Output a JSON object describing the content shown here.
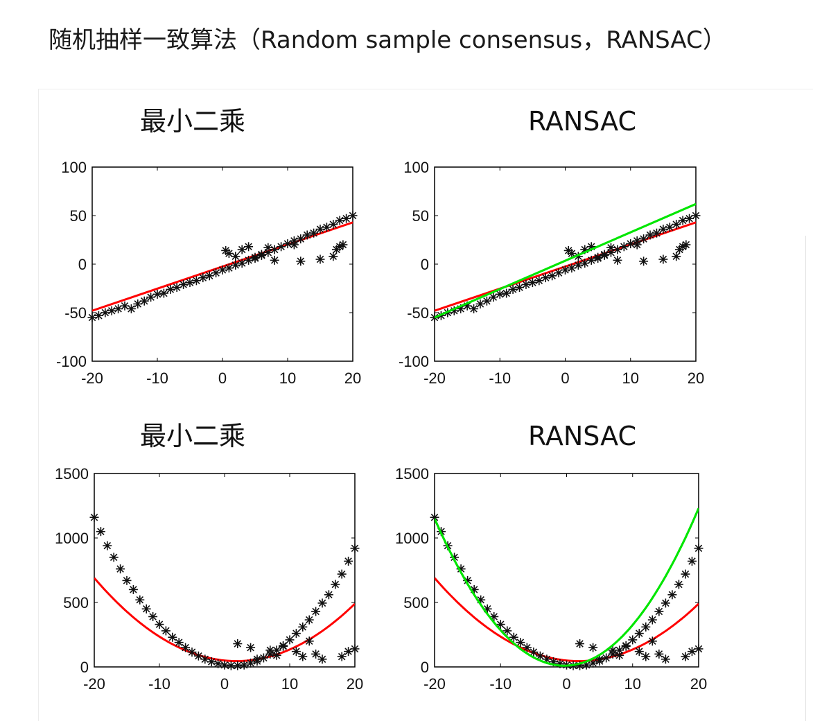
{
  "page": {
    "heading": "随机抽样一致算法（Random sample consensus，RANSAC）"
  },
  "colors": {
    "points": "#111111",
    "least_squares_fit": "#ff0000",
    "ransac_fit": "#00e600",
    "axes": "#000000"
  },
  "chart_data": [
    {
      "id": "linear-ls",
      "type": "scatter",
      "title": "最小二乘",
      "xlim": [
        -20,
        20
      ],
      "ylim": [
        -100,
        100
      ],
      "xticks": [
        "-20",
        "-10",
        "0",
        "10",
        "20"
      ],
      "yticks": [
        "100",
        "50",
        "0",
        "-50",
        "-100"
      ],
      "series": [
        {
          "name": "data",
          "marker": "asterisk",
          "x": [
            -20,
            -19,
            -18,
            -17,
            -16,
            -15,
            -14,
            -13,
            -12,
            -11,
            -10,
            -9,
            -8,
            -7,
            -6,
            -5,
            -4,
            -3,
            -2,
            -1,
            0,
            1,
            2,
            3,
            4,
            5,
            6,
            7,
            8,
            9,
            10,
            11,
            12,
            13,
            14,
            15,
            16,
            17,
            18,
            19,
            20,
            0.5,
            1,
            2,
            3,
            4,
            5,
            6,
            7,
            8,
            11,
            12,
            15,
            17,
            17.5,
            18,
            18.5
          ],
          "y": [
            -55,
            -53,
            -50,
            -48,
            -46,
            -43,
            -46,
            -41,
            -38,
            -34,
            -31,
            -30,
            -26,
            -24,
            -21,
            -19,
            -17,
            -14,
            -12,
            -9,
            -6,
            -4,
            -1,
            1,
            4,
            7,
            9,
            12,
            15,
            18,
            21,
            24,
            26,
            30,
            32,
            36,
            38,
            41,
            45,
            47,
            50,
            14,
            11,
            8,
            15,
            18,
            6,
            10,
            17,
            4,
            20,
            3,
            5,
            8,
            15,
            18,
            20
          ]
        },
        {
          "name": "least squares fit",
          "line": true,
          "x": [
            -20,
            20
          ],
          "y": [
            -48,
            43
          ]
        }
      ]
    },
    {
      "id": "linear-ransac",
      "type": "scatter",
      "title": "RANSAC",
      "xlim": [
        -20,
        20
      ],
      "ylim": [
        -100,
        100
      ],
      "xticks": [
        "-20",
        "-10",
        "0",
        "10",
        "20"
      ],
      "yticks": [
        "100",
        "50",
        "0",
        "-50",
        "-100"
      ],
      "series": [
        {
          "name": "data",
          "marker": "asterisk",
          "x": [
            -20,
            -19,
            -18,
            -17,
            -16,
            -15,
            -14,
            -13,
            -12,
            -11,
            -10,
            -9,
            -8,
            -7,
            -6,
            -5,
            -4,
            -3,
            -2,
            -1,
            0,
            1,
            2,
            3,
            4,
            5,
            6,
            7,
            8,
            9,
            10,
            11,
            12,
            13,
            14,
            15,
            16,
            17,
            18,
            19,
            20,
            0.5,
            1,
            2,
            3,
            4,
            5,
            6,
            7,
            8,
            11,
            12,
            15,
            17,
            17.5,
            18,
            18.5
          ],
          "y": [
            -55,
            -53,
            -50,
            -48,
            -46,
            -43,
            -46,
            -41,
            -38,
            -34,
            -31,
            -30,
            -26,
            -24,
            -21,
            -19,
            -17,
            -14,
            -12,
            -9,
            -6,
            -4,
            -1,
            1,
            4,
            7,
            9,
            12,
            15,
            18,
            21,
            24,
            26,
            30,
            32,
            36,
            38,
            41,
            45,
            47,
            50,
            14,
            11,
            8,
            15,
            18,
            6,
            10,
            17,
            4,
            20,
            3,
            5,
            8,
            15,
            18,
            20
          ]
        },
        {
          "name": "least squares fit",
          "line": true,
          "x": [
            -20,
            20
          ],
          "y": [
            -48,
            43
          ]
        },
        {
          "name": "RANSAC fit",
          "line": true,
          "x": [
            -20,
            20
          ],
          "y": [
            -55,
            62
          ]
        }
      ]
    },
    {
      "id": "quad-ls",
      "type": "scatter",
      "title": "最小二乘",
      "xlim": [
        -20,
        20
      ],
      "ylim": [
        0,
        1500
      ],
      "xticks": [
        "-20",
        "-10",
        "0",
        "10",
        "20"
      ],
      "yticks": [
        "1500",
        "1000",
        "500",
        "0"
      ],
      "series": [
        {
          "name": "data",
          "marker": "asterisk",
          "x": [
            -20,
            -19,
            -18,
            -17,
            -16,
            -15,
            -14,
            -13,
            -12,
            -11,
            -10,
            -9,
            -8,
            -7,
            -6,
            -5,
            -4,
            -3,
            -2,
            -1,
            0,
            1,
            2,
            3,
            4,
            5,
            6,
            7,
            8,
            9,
            10,
            11,
            12,
            13,
            14,
            15,
            16,
            17,
            18,
            19,
            20,
            2,
            4,
            5,
            7,
            8,
            9,
            11,
            12,
            13,
            14,
            15,
            18,
            19,
            20
          ],
          "y": [
            1160,
            1050,
            940,
            850,
            760,
            670,
            600,
            520,
            450,
            390,
            330,
            280,
            230,
            190,
            150,
            115,
            85,
            60,
            40,
            25,
            15,
            10,
            10,
            15,
            30,
            45,
            70,
            100,
            130,
            165,
            210,
            260,
            310,
            365,
            430,
            495,
            560,
            640,
            720,
            820,
            920,
            180,
            150,
            60,
            130,
            90,
            160,
            120,
            80,
            200,
            100,
            60,
            80,
            120,
            140
          ]
        },
        {
          "name": "least squares fit",
          "curve": "quadratic",
          "coeffs": [
            50,
            -5,
            1.35
          ]
        }
      ]
    },
    {
      "id": "quad-ransac",
      "type": "scatter",
      "title": "RANSAC",
      "xlim": [
        -20,
        20
      ],
      "ylim": [
        0,
        1500
      ],
      "xticks": [
        "-20",
        "-10",
        "0",
        "10",
        "20"
      ],
      "yticks": [
        "1500",
        "1000",
        "500",
        "0"
      ],
      "series": [
        {
          "name": "data",
          "marker": "asterisk",
          "x": [
            -20,
            -19,
            -18,
            -17,
            -16,
            -15,
            -14,
            -13,
            -12,
            -11,
            -10,
            -9,
            -8,
            -7,
            -6,
            -5,
            -4,
            -3,
            -2,
            -1,
            0,
            1,
            2,
            3,
            4,
            5,
            6,
            7,
            8,
            9,
            10,
            11,
            12,
            13,
            14,
            15,
            16,
            17,
            18,
            19,
            20,
            2,
            4,
            5,
            7,
            8,
            9,
            11,
            12,
            13,
            14,
            15,
            18,
            19,
            20
          ],
          "y": [
            1160,
            1050,
            940,
            850,
            760,
            670,
            600,
            520,
            450,
            390,
            330,
            280,
            230,
            190,
            150,
            115,
            85,
            60,
            40,
            25,
            15,
            10,
            10,
            15,
            30,
            45,
            70,
            100,
            130,
            165,
            210,
            260,
            310,
            365,
            430,
            495,
            560,
            640,
            720,
            820,
            920,
            180,
            150,
            60,
            130,
            90,
            160,
            120,
            80,
            200,
            100,
            60,
            80,
            120,
            140
          ]
        },
        {
          "name": "least squares fit",
          "curve": "quadratic",
          "coeffs": [
            50,
            -5,
            1.35
          ]
        },
        {
          "name": "RANSAC fit",
          "curve": "quadratic",
          "coeffs": [
            10,
            2,
            2.95
          ]
        }
      ]
    }
  ]
}
